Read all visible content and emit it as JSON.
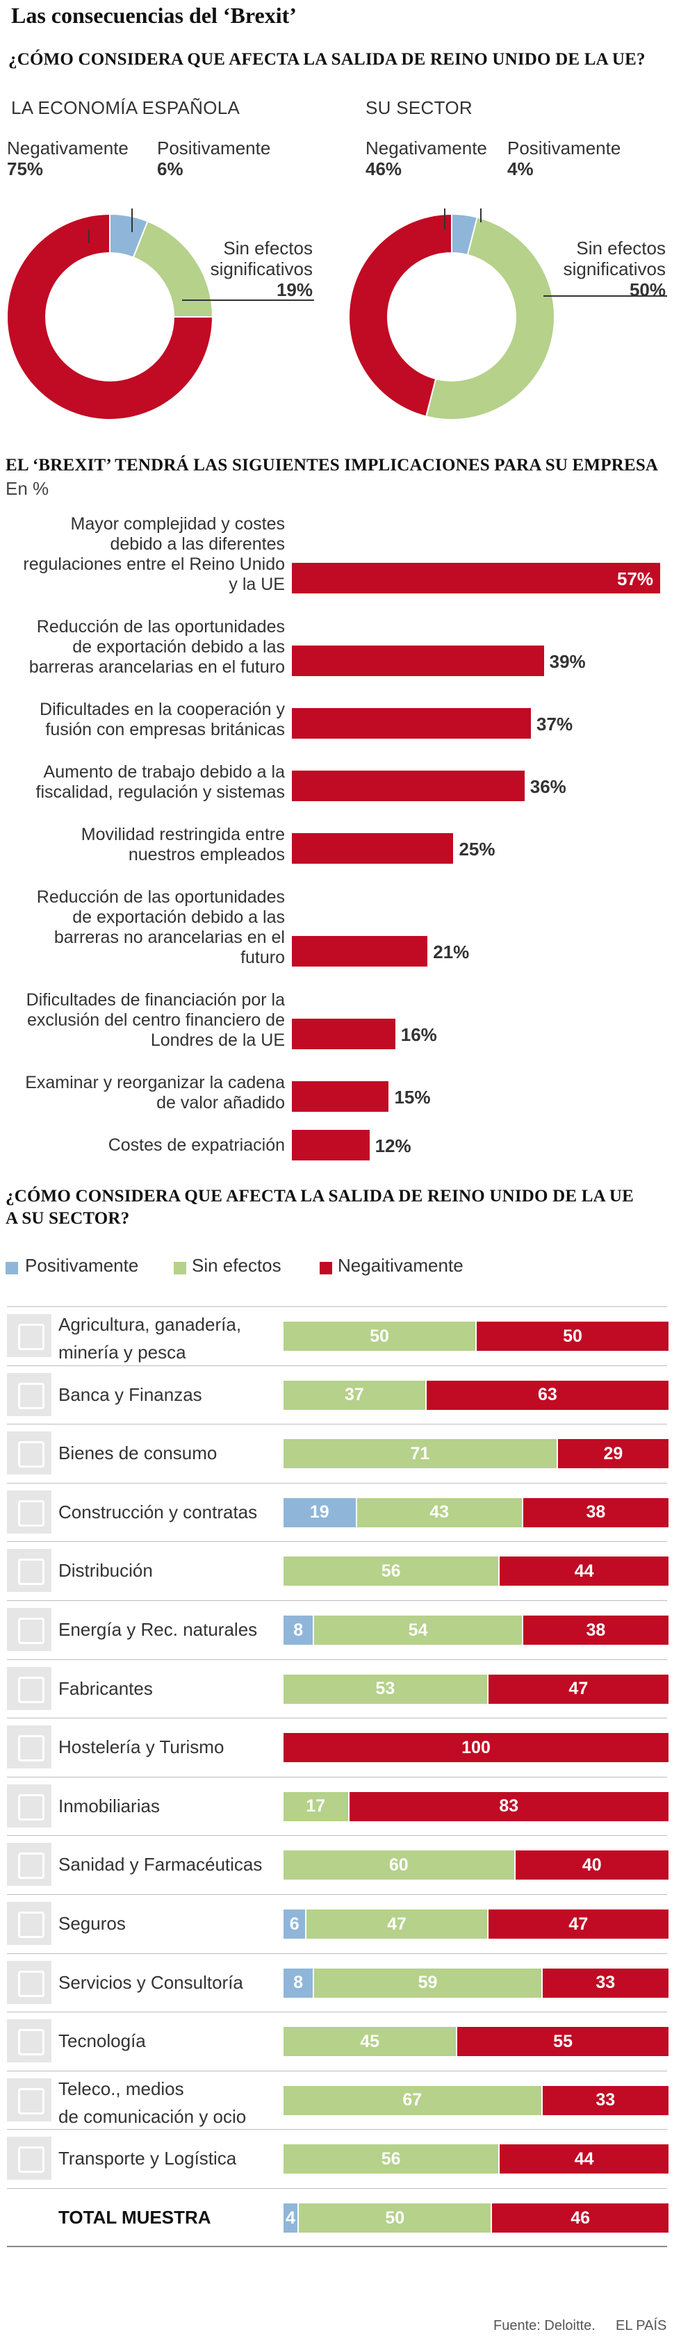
{
  "title": "Las consecuencias del ‘Brexit’",
  "question1": "¿CÓMO CONSIDERA QUE AFECTA LA SALIDA DE REINO UNIDO DE LA UE?",
  "donuts": [
    {
      "title": "LA ECONOMÍA ESPAÑOLA",
      "neg_label": "Negativamente",
      "neg_value": "75%",
      "pos_label": "Positivamente",
      "pos_value": "6%",
      "sin_label1": "Sin efectos",
      "sin_label2": "significativos",
      "sin_value": "19%"
    },
    {
      "title": "SU SECTOR",
      "neg_label": "Negativamente",
      "neg_value": "46%",
      "pos_label": "Positivamente",
      "pos_value": "4%",
      "sin_label1": "Sin efectos",
      "sin_label2": "significativos",
      "sin_value": "50%"
    }
  ],
  "implications_title": "EL ‘BREXIT’ TENDRÁ LAS SIGUIENTES IMPLICACIONES PARA SU EMPRESA",
  "implications_unit": "En %",
  "question2_line1": "¿CÓMO CONSIDERA QUE AFECTA LA SALIDA DE REINO UNIDO DE LA UE",
  "question2_line2": "A SU SECTOR?",
  "legend": {
    "pos": "Positivamente",
    "sin": "Sin efectos",
    "neg": "Negaitivamente"
  },
  "colors": {
    "pos": "#8fb6d9",
    "sin": "#b5d18a",
    "neg": "#c10a24",
    "icon_bg": "#e6e6e6",
    "separator": "#bdbdbd"
  },
  "footer": {
    "source": "Fuente: Deloitte.",
    "brand": "EL PAÍS"
  },
  "chart_data": [
    {
      "type": "pie",
      "title": "LA ECONOMÍA ESPAÑOLA",
      "categories": [
        "Positivamente",
        "Sin efectos significativos",
        "Negativamente"
      ],
      "values": [
        6,
        19,
        75
      ],
      "colors": [
        "#8fb6d9",
        "#b5d18a",
        "#c10a24"
      ]
    },
    {
      "type": "pie",
      "title": "SU SECTOR",
      "categories": [
        "Positivamente",
        "Sin efectos significativos",
        "Negativamente"
      ],
      "values": [
        4,
        50,
        46
      ],
      "colors": [
        "#8fb6d9",
        "#b5d18a",
        "#c10a24"
      ]
    },
    {
      "type": "bar",
      "orientation": "horizontal",
      "title": "EL ‘BREXIT’ TENDRÁ LAS SIGUIENTES IMPLICACIONES PARA SU EMPRESA",
      "ylabel": "En %",
      "categories": [
        [
          "Mayor complejidad y costes",
          "debido a las diferentes",
          "regulaciones entre el Reino Unido",
          "y la UE"
        ],
        [
          "Reducción de las oportunidades",
          "de exportación debido a las",
          "barreras arancelarias en el futuro"
        ],
        [
          "Dificultades en la cooperación y",
          "fusión con empresas británicas"
        ],
        [
          "Aumento de trabajo debido a la",
          "fiscalidad, regulación y sistemas"
        ],
        [
          "Movilidad restringida entre",
          "nuestros empleados"
        ],
        [
          "Reducción de las oportunidades",
          "de exportación debido a las",
          "barreras no arancelarias en el",
          "futuro"
        ],
        [
          "Dificultades de financiación por la",
          "exclusión del centro financiero de",
          "Londres de la UE"
        ],
        [
          "Examinar y reorganizar la cadena",
          "de valor añadido"
        ],
        [
          "Costes de expatriación"
        ]
      ],
      "values": [
        57,
        39,
        37,
        36,
        25,
        21,
        16,
        15,
        12
      ],
      "value_labels": [
        "57%",
        "39%",
        "37%",
        "36%",
        "25%",
        "21%",
        "16%",
        "15%",
        "12%"
      ],
      "xlim": [
        0,
        57
      ]
    },
    {
      "type": "bar",
      "orientation": "horizontal",
      "stacked": true,
      "title": "¿CÓMO CONSIDERA QUE AFECTA LA SALIDA DE REINO UNIDO DE LA UE A SU SECTOR?",
      "series_names": [
        "Positivamente",
        "Sin efectos",
        "Negaitivamente"
      ],
      "rows": [
        {
          "label": [
            "Agricultura, ganadería,",
            "minería y pesca"
          ],
          "icon": "tractor-icon",
          "pos": 0,
          "sin": 50,
          "neg": 50
        },
        {
          "label": [
            "Banca y Finanzas"
          ],
          "icon": "bank-icon",
          "pos": 0,
          "sin": 37,
          "neg": 63
        },
        {
          "label": [
            "Bienes de consumo"
          ],
          "icon": "shopping-icon",
          "pos": 0,
          "sin": 71,
          "neg": 29
        },
        {
          "label": [
            "Construcción y contratas"
          ],
          "icon": "construction-icon",
          "pos": 19,
          "sin": 43,
          "neg": 38
        },
        {
          "label": [
            "Distribución"
          ],
          "icon": "box-icon",
          "pos": 0,
          "sin": 56,
          "neg": 44
        },
        {
          "label": [
            "Energía y Rec. naturales"
          ],
          "icon": "lightbulb-icon",
          "pos": 8,
          "sin": 54,
          "neg": 38
        },
        {
          "label": [
            "Fabricantes"
          ],
          "icon": "gear-icon",
          "pos": 0,
          "sin": 53,
          "neg": 47
        },
        {
          "label": [
            "Hostelería  y Turismo"
          ],
          "icon": "hotel-icon",
          "pos": 0,
          "sin": 0,
          "neg": 100
        },
        {
          "label": [
            "Inmobiliarias"
          ],
          "icon": "house-icon",
          "pos": 0,
          "sin": 17,
          "neg": 83
        },
        {
          "label": [
            "Sanidad y Farmacéuticas"
          ],
          "icon": "medical-cross-icon",
          "pos": 0,
          "sin": 60,
          "neg": 40
        },
        {
          "label": [
            "Seguros"
          ],
          "icon": "shield-icon",
          "pos": 6,
          "sin": 47,
          "neg": 47
        },
        {
          "label": [
            "Servicios  y Consultoría"
          ],
          "icon": "briefcase-icon",
          "pos": 8,
          "sin": 59,
          "neg": 33
        },
        {
          "label": [
            "Tecnología"
          ],
          "icon": "computer-icon",
          "pos": 0,
          "sin": 45,
          "neg": 55
        },
        {
          "label": [
            "Teleco., medios",
            "de comunicación y ocio"
          ],
          "icon": "phone-icon",
          "pos": 0,
          "sin": 67,
          "neg": 33
        },
        {
          "label": [
            "Transporte  y Logística"
          ],
          "icon": "bus-icon",
          "pos": 0,
          "sin": 56,
          "neg": 44
        },
        {
          "label": [
            "TOTAL MUESTRA"
          ],
          "icon": "",
          "pos": 4,
          "sin": 50,
          "neg": 46,
          "total": true
        }
      ]
    }
  ]
}
